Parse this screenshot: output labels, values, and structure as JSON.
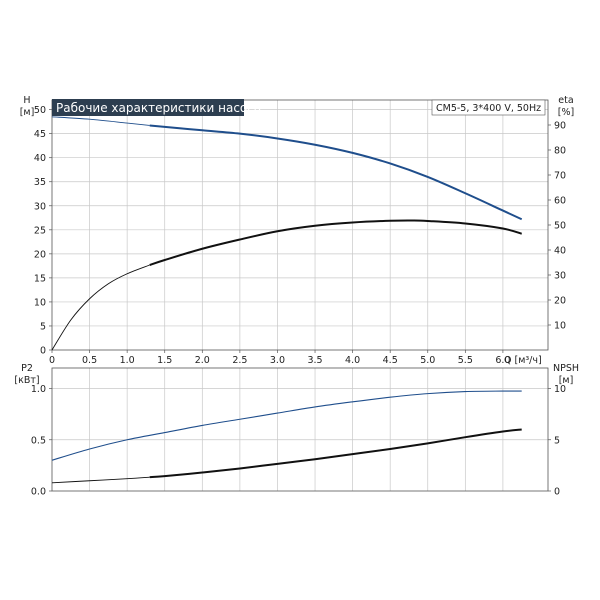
{
  "header": {
    "title": "Рабочие характеристики насоса",
    "model": "CM5-5, 3*400 V, 50Hz"
  },
  "chart_data": [
    {
      "type": "line",
      "panel": "top",
      "x_axis": {
        "label": "Q [м³/ч]",
        "range": [
          0,
          6.6
        ],
        "ticks": [
          0,
          0.5,
          1.0,
          1.5,
          2.0,
          2.5,
          3.0,
          3.5,
          4.0,
          4.5,
          5.0,
          5.5,
          6.0
        ],
        "tick_labels": [
          "0",
          "0.5",
          "1.0",
          "1.5",
          "2.0",
          "2.5",
          "3.0",
          "3.5",
          "4.0",
          "4.5",
          "5.0",
          "5.5",
          "6.0"
        ]
      },
      "y_axis_left": {
        "label_line1": "H",
        "label_line2": "[м]",
        "range": [
          0,
          52
        ],
        "ticks": [
          0,
          5,
          10,
          15,
          20,
          25,
          30,
          35,
          40,
          45,
          50
        ],
        "tick_labels": [
          "0",
          "5",
          "10",
          "15",
          "20",
          "25",
          "30",
          "35",
          "40",
          "45",
          "50"
        ]
      },
      "y_axis_right": {
        "label_line1": "eta",
        "label_line2": "[%]",
        "range": [
          0,
          100
        ],
        "ticks": [
          10,
          20,
          30,
          40,
          50,
          60,
          70,
          80,
          90
        ],
        "tick_labels": [
          "10",
          "20",
          "30",
          "40",
          "50",
          "60",
          "70",
          "80",
          "90"
        ]
      },
      "grid": true,
      "series": [
        {
          "axis": "left",
          "color": "#1f4e8c",
          "thin_until_x": 1.3,
          "x": [
            0,
            0.5,
            1.0,
            1.3,
            1.5,
            2.0,
            2.5,
            3.0,
            3.5,
            4.0,
            4.5,
            5.0,
            5.5,
            6.0,
            6.25
          ],
          "y": [
            48.5,
            48.0,
            47.2,
            46.7,
            46.4,
            45.7,
            45.0,
            44.0,
            42.7,
            41.0,
            38.8,
            36.0,
            32.6,
            29.0,
            27.2
          ]
        },
        {
          "axis": "right",
          "color": "#111111",
          "thin_until_x": 1.3,
          "x": [
            0,
            0.25,
            0.5,
            0.75,
            1.0,
            1.3,
            1.5,
            2.0,
            2.5,
            3.0,
            3.5,
            4.0,
            4.5,
            4.8,
            5.0,
            5.5,
            6.0,
            6.25
          ],
          "y": [
            0,
            12,
            20.5,
            26.5,
            30.5,
            34,
            36,
            40.5,
            44.2,
            47.5,
            49.7,
            51.0,
            51.7,
            51.8,
            51.6,
            50.6,
            48.6,
            46.5
          ]
        }
      ]
    },
    {
      "type": "line",
      "panel": "bottom",
      "x_axis": {
        "range": [
          0,
          6.6
        ]
      },
      "y_axis_left": {
        "label_line1": "P2",
        "label_line2": "[кВт]",
        "range": [
          0,
          1.2
        ],
        "ticks": [
          0,
          0.5,
          1.0
        ],
        "tick_labels": [
          "0.0",
          "0.5",
          "1.0"
        ]
      },
      "y_axis_right": {
        "label_line1": "NPSH",
        "label_line2": "[м]",
        "range": [
          0,
          12
        ],
        "ticks": [
          0,
          5,
          10
        ],
        "tick_labels": [
          "0",
          "5",
          "10"
        ]
      },
      "grid": true,
      "series": [
        {
          "axis": "left",
          "color": "#1f4e8c",
          "thin_until_x": 7,
          "x": [
            0,
            0.5,
            1.0,
            1.5,
            2.0,
            2.5,
            3.0,
            3.5,
            4.0,
            4.5,
            5.0,
            5.5,
            6.0,
            6.25
          ],
          "y": [
            0.3,
            0.41,
            0.5,
            0.57,
            0.64,
            0.7,
            0.76,
            0.82,
            0.87,
            0.915,
            0.95,
            0.97,
            0.975,
            0.975
          ]
        },
        {
          "axis": "right",
          "color": "#111111",
          "thin_until_x": 1.3,
          "x": [
            0,
            0.5,
            1.0,
            1.3,
            1.5,
            2.0,
            2.5,
            3.0,
            3.5,
            4.0,
            4.5,
            5.0,
            5.5,
            6.0,
            6.25
          ],
          "y": [
            0.8,
            1.0,
            1.2,
            1.35,
            1.45,
            1.8,
            2.2,
            2.65,
            3.1,
            3.6,
            4.1,
            4.65,
            5.25,
            5.8,
            6.0
          ]
        }
      ]
    }
  ]
}
